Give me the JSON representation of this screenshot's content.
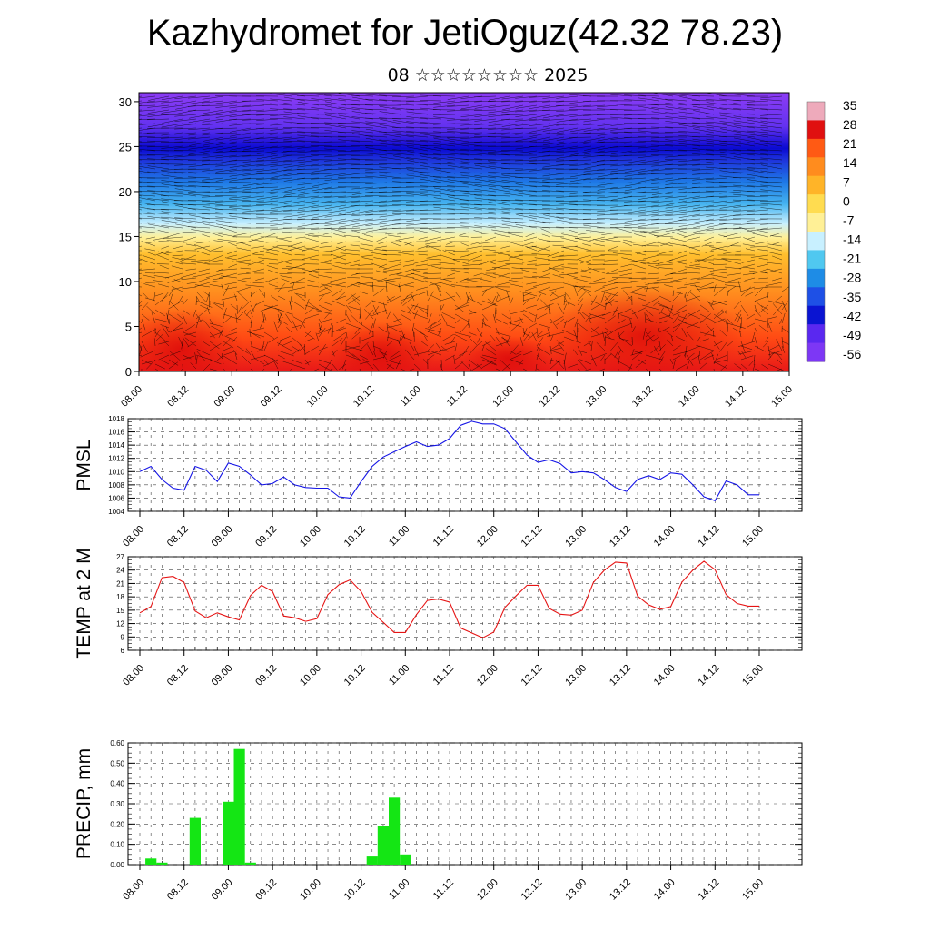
{
  "header": {
    "title": "Kazhydromet for JetiOguz(42.32 78.23)",
    "subtitle": "08 ☆☆☆☆☆☆☆☆ 2025"
  },
  "chart_data": [
    {
      "type": "heatmap",
      "title": "",
      "ylim": [
        0,
        31
      ],
      "yticks": [
        0,
        5,
        10,
        15,
        20,
        25,
        30
      ],
      "xticklabels": [
        "08.00",
        "08.12",
        "09.00",
        "09.12",
        "10.00",
        "10.12",
        "11.00",
        "11.12",
        "12.00",
        "12.12",
        "13.00",
        "13.12",
        "14.00",
        "14.12",
        "15.00"
      ],
      "colorbar_labels": [
        "35",
        "28",
        "21",
        "14",
        "7",
        "0",
        "-7",
        "-14",
        "-21",
        "-28",
        "-35",
        "-42",
        "-49",
        "-56"
      ],
      "colormap": [
        "#eeaabb",
        "#e01010",
        "#ff5a14",
        "#ff8c1e",
        "#ffb428",
        "#ffdc50",
        "#fff096",
        "#c8f0ff",
        "#50c8f0",
        "#1e8ce6",
        "#1e50e6",
        "#0a14d2",
        "#5a28f0",
        "#7d37f5"
      ],
      "wind_vectors": true
    },
    {
      "type": "line",
      "ylabel": "PMSL",
      "ylim": [
        1004,
        1018
      ],
      "yticks": [
        1004,
        1006,
        1008,
        1010,
        1012,
        1014,
        1016,
        1018
      ],
      "xticklabels": [
        "08.00",
        "08.12",
        "09.00",
        "09.12",
        "10.00",
        "10.12",
        "11.00",
        "11.12",
        "12.00",
        "12.12",
        "13.00",
        "13.12",
        "14.00",
        "14.12",
        "15.00"
      ],
      "x_step_hours": 3,
      "values": [
        1010.0,
        1010.8,
        1008.8,
        1007.5,
        1007.2,
        1010.8,
        1010.2,
        1008.5,
        1011.3,
        1010.8,
        1009.5,
        1008.0,
        1008.2,
        1009.2,
        1008.0,
        1007.6,
        1007.5,
        1007.5,
        1006.2,
        1006.0,
        1008.5,
        1010.8,
        1012.2,
        1013.0,
        1013.8,
        1014.5,
        1013.8,
        1014.0,
        1015.0,
        1017.0,
        1017.6,
        1017.2,
        1017.2,
        1016.5,
        1014.5,
        1012.5,
        1011.4,
        1011.8,
        1011.2,
        1009.8,
        1010.0,
        1009.8,
        1008.8,
        1007.6,
        1007.0,
        1008.8,
        1009.4,
        1008.8,
        1009.8,
        1009.6,
        1008.0,
        1006.2,
        1005.6,
        1008.6,
        1008.0,
        1006.5,
        1006.5
      ],
      "color": "#1414e6"
    },
    {
      "type": "line",
      "ylabel": "TEMP at 2 M",
      "ylim": [
        6,
        27
      ],
      "yticks": [
        6,
        9,
        12,
        15,
        18,
        21,
        24,
        27
      ],
      "xticklabels": [
        "08.00",
        "08.12",
        "09.00",
        "09.12",
        "10.00",
        "10.12",
        "11.00",
        "11.12",
        "12.00",
        "12.12",
        "13.00",
        "13.12",
        "14.00",
        "14.12",
        "15.00"
      ],
      "x_step_hours": 3,
      "values": [
        14.4,
        15.8,
        22.3,
        22.6,
        21.2,
        14.8,
        13.3,
        14.4,
        13.5,
        12.8,
        18.3,
        20.6,
        19.2,
        13.7,
        13.3,
        12.5,
        13.1,
        18.5,
        20.7,
        21.8,
        19.2,
        14.5,
        12.3,
        10.0,
        10.0,
        14.0,
        17.2,
        17.5,
        16.8,
        11.0,
        9.9,
        8.8,
        10.1,
        15.6,
        18.2,
        20.6,
        20.6,
        15.4,
        14.1,
        13.9,
        15.0,
        21.2,
        24.0,
        25.8,
        25.6,
        18.2,
        16.2,
        15.2,
        15.8,
        21.3,
        24.0,
        26.0,
        24.1,
        18.5,
        16.5,
        15.9,
        15.9
      ],
      "color": "#e61414"
    },
    {
      "type": "bar",
      "ylabel": "PRECIP, mm",
      "ylim": [
        0,
        0.6
      ],
      "yticks": [
        "0.00",
        "0.10",
        "0.20",
        "0.30",
        "0.40",
        "0.50",
        "0.60"
      ],
      "xticklabels": [
        "08.00",
        "08.12",
        "09.00",
        "09.12",
        "10.00",
        "10.12",
        "11.00",
        "11.12",
        "12.00",
        "12.12",
        "13.00",
        "13.12",
        "14.00",
        "14.12",
        "15.00"
      ],
      "x_step_hours": 3,
      "values": [
        0,
        0.03,
        0.01,
        0,
        0,
        0.23,
        0,
        0,
        0.31,
        0.57,
        0.01,
        0,
        0,
        0,
        0,
        0,
        0,
        0,
        0,
        0,
        0,
        0.04,
        0.19,
        0.33,
        0.05,
        0,
        0,
        0,
        0,
        0,
        0,
        0,
        0,
        0,
        0,
        0,
        0,
        0,
        0,
        0,
        0,
        0,
        0,
        0,
        0,
        0,
        0,
        0,
        0,
        0,
        0,
        0,
        0,
        0,
        0,
        0,
        0
      ],
      "color": "#14e614"
    }
  ]
}
